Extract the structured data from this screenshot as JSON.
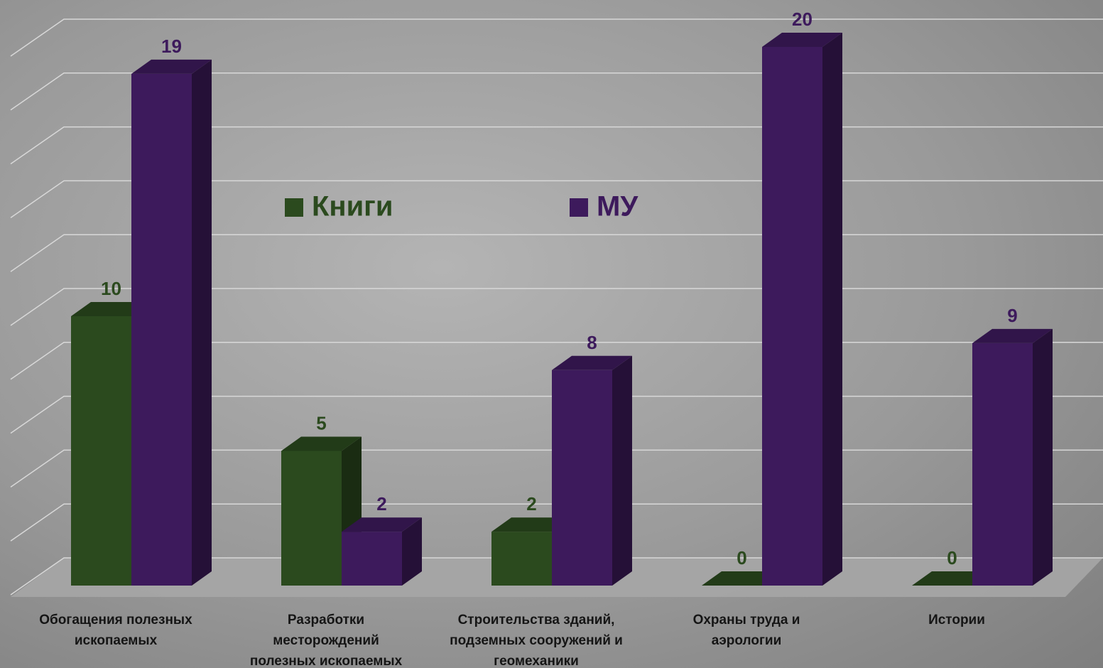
{
  "chart_data": {
    "type": "bar3d",
    "categories": [
      "Обогащения полезных ископаемых",
      "Разработки месторождений полезных ископаемых",
      "Строительства зданий, подземных сооружений и геомеханики",
      "Охраны труда и аэрологии",
      "Истории"
    ],
    "series": [
      {
        "name": "Книги",
        "color": "#2b4a1e",
        "values": [
          10,
          5,
          2,
          0,
          0
        ]
      },
      {
        "name": "МУ",
        "color": "#3d1a5c",
        "values": [
          19,
          2,
          8,
          20,
          9
        ]
      }
    ],
    "ylim": [
      0,
      20
    ],
    "yticks": [
      0,
      2,
      4,
      6,
      8,
      10,
      12,
      14,
      16,
      18,
      20
    ],
    "grid": true
  }
}
